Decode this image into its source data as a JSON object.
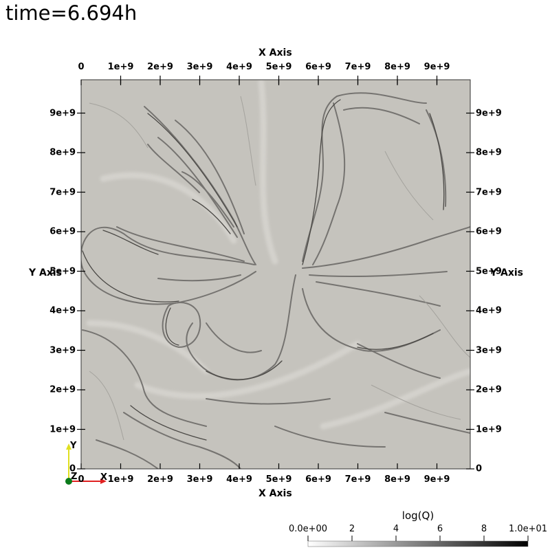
{
  "time_label": "time=6.694h",
  "axes": {
    "x_title": "X Axis",
    "y_title": "Y Axis",
    "x_ticks": [
      "0",
      "1e+9",
      "2e+9",
      "3e+9",
      "4e+9",
      "5e+9",
      "6e+9",
      "7e+9",
      "8e+9",
      "9e+9"
    ],
    "y_ticks": [
      "0",
      "1e+9",
      "2e+9",
      "3e+9",
      "4e+9",
      "5e+9",
      "6e+9",
      "7e+9",
      "8e+9",
      "9e+9"
    ]
  },
  "colorbar": {
    "title": "log(Q)",
    "labels": [
      "0.0e+00",
      "2",
      "4",
      "6",
      "8",
      "1.0e+01"
    ],
    "range": [
      0,
      10
    ],
    "colors": [
      "#ffffff",
      "#000000"
    ]
  },
  "orientation_triad": {
    "x": "X",
    "y": "Y",
    "z": "Z"
  },
  "colors": {
    "field_background": "#c5c3bd",
    "x_arrow": "#e02020",
    "y_arrow": "#e0e020",
    "z_dot": "#0a7a1a"
  }
}
